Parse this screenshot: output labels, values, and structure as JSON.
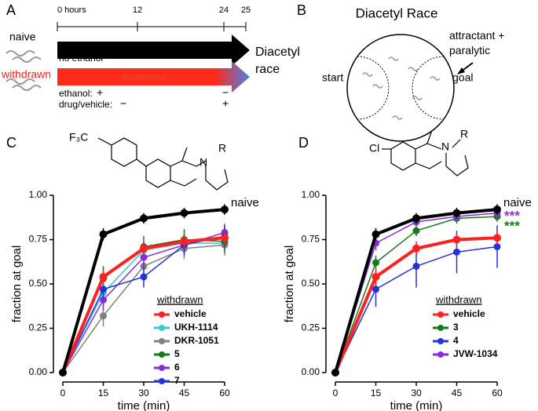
{
  "panel_a": {
    "label": "A",
    "timeline": [
      "0 hours",
      "12",
      "24",
      "25"
    ],
    "naive": "naive",
    "naive_bar": "no ethanol",
    "withdrawn": "withdrawn",
    "withdrawn_bar": "no ethanol",
    "endpoint": "Diacetyl race",
    "ethanol": "ethanol:",
    "ethanol_start": "+",
    "ethanol_end": "−",
    "drug": "drug/vehicle:",
    "drug_start": "−",
    "drug_end": "+"
  },
  "panel_b": {
    "label": "B",
    "title": "Diacetyl Race",
    "attractant": "attractant + paralytic",
    "start": "start",
    "goal": "goal"
  },
  "structures": {
    "c_substituent": "F₃C",
    "c_n": "N",
    "c_r": "R",
    "d_substituent": "Cl",
    "d_n": "N",
    "d_r": "R"
  },
  "chart_data": [
    {
      "type": "line",
      "panel": "C",
      "xlabel": "time (min)",
      "ylabel": "fraction at goal",
      "legend_title": "withdrawn",
      "x": [
        0,
        15,
        30,
        45,
        60
      ],
      "xlim": [
        0,
        60
      ],
      "xticks": [
        0,
        15,
        30,
        45,
        60
      ],
      "ylim": [
        0,
        1
      ],
      "yticks": [
        {
          "value": 0,
          "label": "0.00"
        },
        {
          "value": 0.25,
          "label": "0.25"
        },
        {
          "value": 0.5,
          "label": "0.50"
        },
        {
          "value": 0.75,
          "label": "0.75"
        },
        {
          "value": 1,
          "label": "1.00"
        }
      ],
      "series": [
        {
          "name": "naive",
          "color": "#000000",
          "values": [
            0,
            0.78,
            0.87,
            0.9,
            0.92
          ],
          "errors": [
            0,
            0.035,
            0.03,
            0.03,
            0.03
          ]
        },
        {
          "name": "vehicle",
          "color": "#ff2020",
          "values": [
            0,
            0.54,
            0.7,
            0.74,
            0.76
          ],
          "errors": [
            0,
            0.05,
            0.04,
            0.04,
            0.04
          ]
        },
        {
          "name": "UKH-1114",
          "color": "#3cc8c8",
          "values": [
            0,
            0.45,
            0.69,
            0.73,
            0.73
          ],
          "errors": [
            0,
            0.07,
            0.05,
            0.05,
            0.06
          ]
        },
        {
          "name": "DKR-1051",
          "color": "#808080",
          "values": [
            0,
            0.32,
            0.6,
            0.7,
            0.72
          ],
          "errors": [
            0,
            0.06,
            0.06,
            0.06,
            0.06
          ]
        },
        {
          "name": "5",
          "color": "#1a7a1a",
          "values": [
            0,
            0.53,
            0.71,
            0.75,
            0.74
          ],
          "errors": [
            0,
            0.07,
            0.06,
            0.06,
            0.06
          ]
        },
        {
          "name": "6",
          "color": "#8a2be2",
          "values": [
            0,
            0.41,
            0.65,
            0.72,
            0.79
          ],
          "errors": [
            0,
            0.06,
            0.05,
            0.05,
            0.05
          ]
        },
        {
          "name": "7",
          "color": "#2233dd",
          "values": [
            0,
            0.47,
            0.54,
            0.72,
            0.77
          ],
          "errors": [
            0,
            0.06,
            0.06,
            0.06,
            0.06
          ]
        }
      ]
    },
    {
      "type": "line",
      "panel": "D",
      "xlabel": "time (min)",
      "ylabel": "fraction at goal",
      "legend_title": "withdrawn",
      "x": [
        0,
        15,
        30,
        45,
        60
      ],
      "xlim": [
        0,
        60
      ],
      "xticks": [
        0,
        15,
        30,
        45,
        60
      ],
      "ylim": [
        0,
        1
      ],
      "yticks": [
        {
          "value": 0,
          "label": "0.00"
        },
        {
          "value": 0.25,
          "label": "0.25"
        },
        {
          "value": 0.5,
          "label": "0.50"
        },
        {
          "value": 0.75,
          "label": "0.75"
        },
        {
          "value": 1,
          "label": "1.00"
        }
      ],
      "annotations": [
        {
          "text": "***",
          "color": "#8a2be2"
        },
        {
          "text": "***",
          "color": "#1a7a1a"
        }
      ],
      "series": [
        {
          "name": "naive",
          "color": "#000000",
          "values": [
            0,
            0.78,
            0.87,
            0.9,
            0.92
          ],
          "errors": [
            0,
            0.035,
            0.03,
            0.03,
            0.03
          ]
        },
        {
          "name": "vehicle",
          "color": "#ff2020",
          "values": [
            0,
            0.54,
            0.7,
            0.75,
            0.76
          ],
          "errors": [
            0,
            0.05,
            0.04,
            0.04,
            0.04
          ]
        },
        {
          "name": "3",
          "color": "#1a7a1a",
          "values": [
            0,
            0.62,
            0.8,
            0.87,
            0.88
          ],
          "errors": [
            0,
            0.04,
            0.03,
            0.03,
            0.03
          ]
        },
        {
          "name": "4",
          "color": "#2233dd",
          "values": [
            0,
            0.47,
            0.6,
            0.68,
            0.71
          ],
          "errors": [
            0,
            0.1,
            0.12,
            0.12,
            0.12
          ]
        },
        {
          "name": "JVW-1034",
          "color": "#8a2be2",
          "values": [
            0,
            0.73,
            0.85,
            0.88,
            0.9
          ],
          "errors": [
            0,
            0.04,
            0.03,
            0.03,
            0.03
          ]
        }
      ]
    }
  ]
}
